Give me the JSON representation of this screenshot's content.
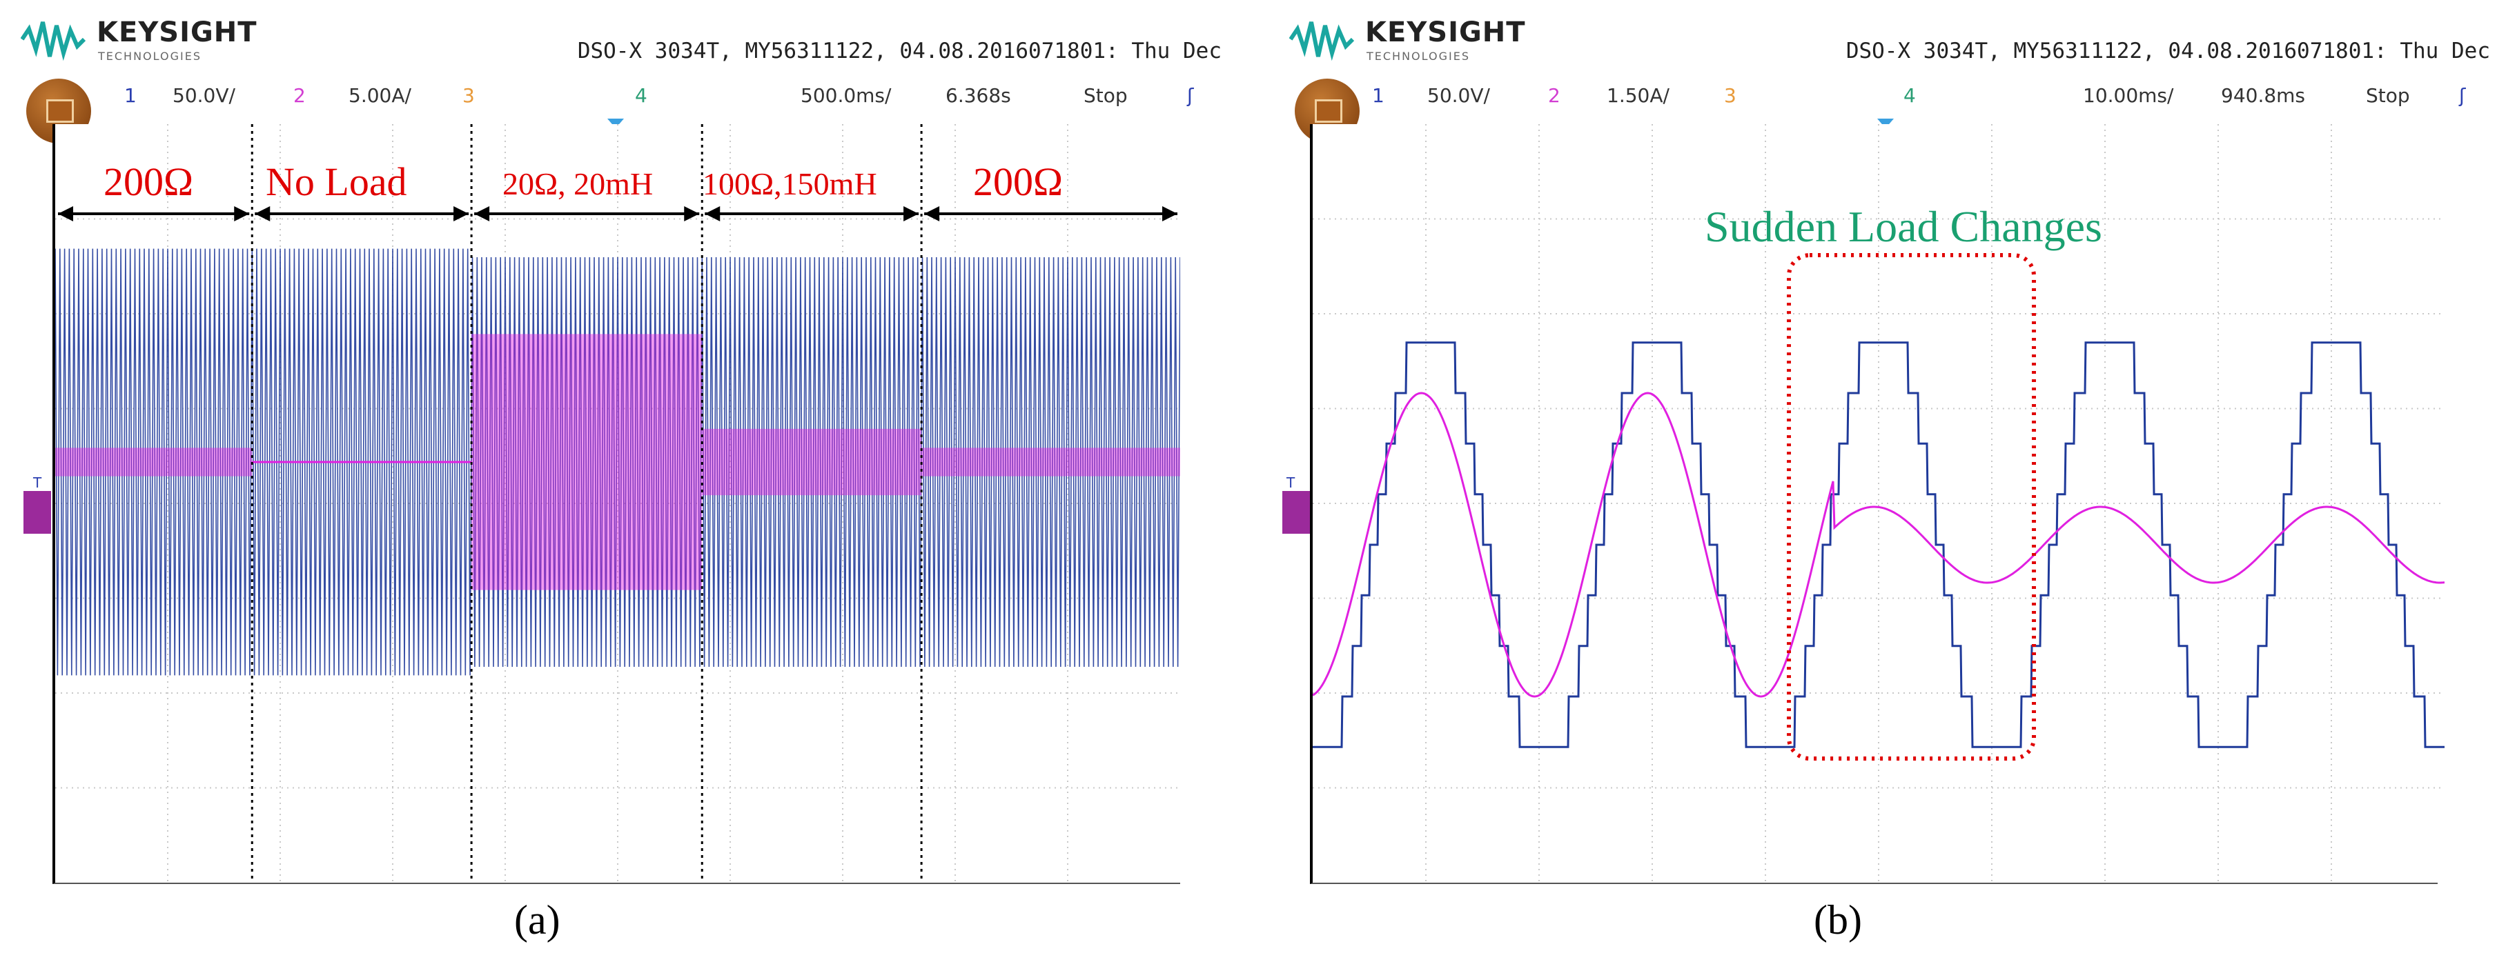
{
  "brand": {
    "name": "KEYSIGHT",
    "sub": "TECHNOLOGIES"
  },
  "panels": [
    {
      "id": "a",
      "header": "DSO-X 3034T, MY56311122, 04.08.2016071801: Thu Dec",
      "toolbar": {
        "ch1": "1",
        "ch1_scale": "50.0V/",
        "ch2": "2",
        "ch2_scale": "5.00A/",
        "ch3": "3",
        "ch4": "4",
        "timebase": "500.0ms/",
        "delay": "6.368s",
        "status": "Stop",
        "trig": "ʃ"
      },
      "caption": "(a)",
      "segments": [
        {
          "label": "200Ω"
        },
        {
          "label": "No Load"
        },
        {
          "label": "20Ω, 20mH"
        },
        {
          "label": "100Ω,150mH"
        },
        {
          "label": "200Ω"
        }
      ]
    },
    {
      "id": "b",
      "header": "DSO-X 3034T, MY56311122, 04.08.2016071801: Thu Dec",
      "toolbar": {
        "ch1": "1",
        "ch1_scale": "50.0V/",
        "ch2": "2",
        "ch2_scale": "1.50A/",
        "ch3": "3",
        "ch4": "4",
        "timebase": "10.00ms/",
        "delay": "940.8ms",
        "status": "Stop",
        "trig": "ʃ"
      },
      "caption": "(b)",
      "annotation": "Sudden Load Changes"
    }
  ],
  "colors": {
    "voltage": "#1f3a9a",
    "current": "#e020e0",
    "label_red": "#e00000",
    "annot_green": "#1aa070",
    "grid": "#b0b0b0"
  },
  "chart_data": [
    {
      "type": "line",
      "title": "",
      "xlabel": "",
      "ylabel": "",
      "time_per_div": "500.0ms/",
      "segments": [
        "200Ω",
        "No Load",
        "20Ω, 20mH",
        "100Ω,150mH",
        "200Ω"
      ],
      "series": [
        {
          "name": "",
          "description_key": "voltage_envelope_divs",
          "values": [
            2.5,
            2.5,
            2.4,
            2.4,
            2.4
          ]
        },
        {
          "name": "",
          "description_key": "current_envelope_divs",
          "values": [
            0.15,
            0.0,
            1.35,
            0.35,
            0.15
          ]
        }
      ]
    },
    {
      "type": "line",
      "title": "",
      "xlabel": "",
      "ylabel": "",
      "time_per_div": "10.00ms/",
      "series": [
        {
          "name": "",
          "description_key": "voltage_peak_divs",
          "values": [
            2.4,
            2.4,
            2.4,
            2.4,
            2.4
          ]
        },
        {
          "name": "",
          "description_key": "current_peak_divs",
          "values": [
            1.6,
            1.6,
            0.4,
            0.4,
            0.4
          ]
        }
      ]
    }
  ]
}
